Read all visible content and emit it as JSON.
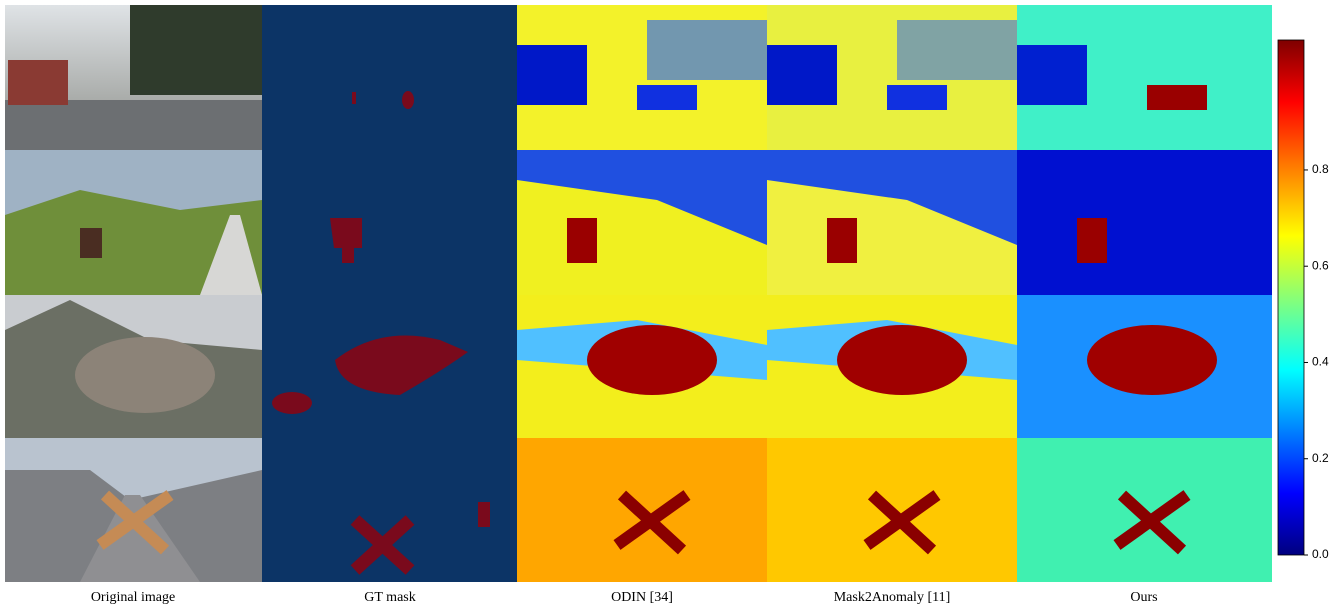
{
  "figure": {
    "columns": [
      "Original image",
      "GT mask",
      "ODIN [34]",
      "Mask2Anomaly [11]",
      "Ours"
    ],
    "colorbar": {
      "lim": [
        0,
        1.07
      ],
      "ticks": [
        {
          "value": 0,
          "label": "0.0"
        },
        0.2,
        0.4,
        0.6,
        0.8
      ]
    }
  }
}
